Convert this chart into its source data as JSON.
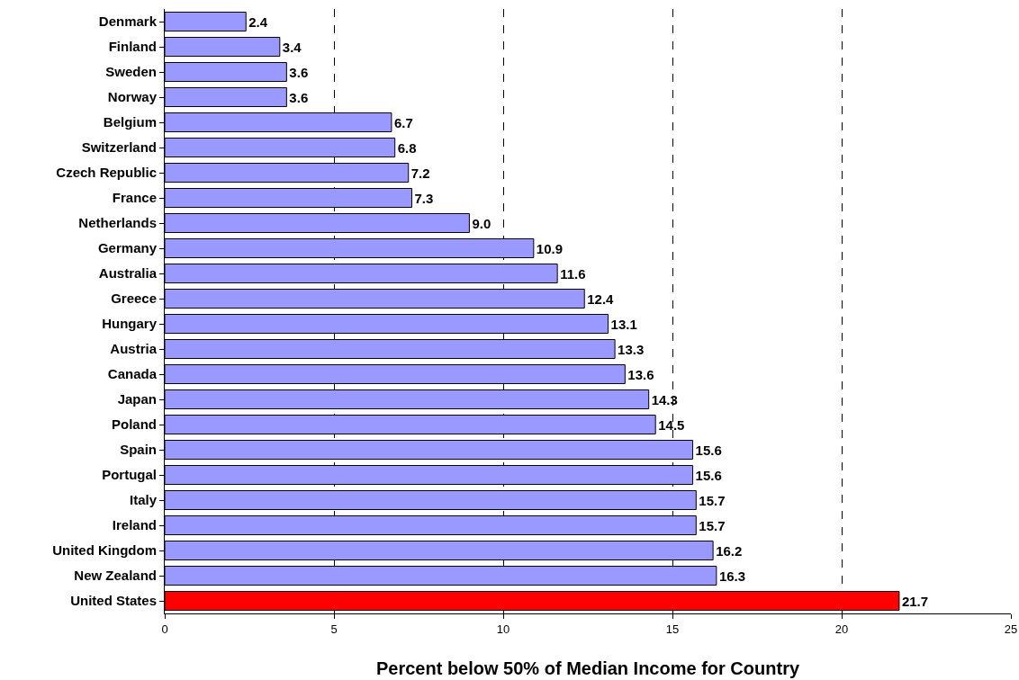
{
  "chart_data": {
    "type": "bar",
    "orientation": "horizontal",
    "xlabel": "Percent below 50% of Median Income for Country",
    "categories": [
      "Denmark",
      "Finland",
      "Sweden",
      "Norway",
      "Belgium",
      "Switzerland",
      "Czech Republic",
      "France",
      "Netherlands",
      "Germany",
      "Australia",
      "Greece",
      "Hungary",
      "Austria",
      "Canada",
      "Japan",
      "Poland",
      "Spain",
      "Portugal",
      "Italy",
      "Ireland",
      "United Kingdom",
      "New Zealand",
      "United States"
    ],
    "values": [
      2.4,
      3.4,
      3.6,
      3.6,
      6.7,
      6.8,
      7.2,
      7.3,
      9.0,
      10.9,
      11.6,
      12.4,
      13.1,
      13.3,
      13.6,
      14.3,
      14.5,
      15.6,
      15.6,
      15.7,
      15.7,
      16.2,
      16.3,
      21.7
    ],
    "value_labels": [
      "2.4",
      "3.4",
      "3.6",
      "3.6",
      "6.7",
      "6.8",
      "7.2",
      "7.3",
      "9.0",
      "10.9",
      "11.6",
      "12.4",
      "13.1",
      "13.3",
      "13.6",
      "14.3",
      "14.5",
      "15.6",
      "15.6",
      "15.7",
      "15.7",
      "16.2",
      "16.3",
      "21.7"
    ],
    "colors": [
      "#9999ff",
      "#9999ff",
      "#9999ff",
      "#9999ff",
      "#9999ff",
      "#9999ff",
      "#9999ff",
      "#9999ff",
      "#9999ff",
      "#9999ff",
      "#9999ff",
      "#9999ff",
      "#9999ff",
      "#9999ff",
      "#9999ff",
      "#9999ff",
      "#9999ff",
      "#9999ff",
      "#9999ff",
      "#9999ff",
      "#9999ff",
      "#9999ff",
      "#9999ff",
      "#ff0000"
    ],
    "xlim": [
      0,
      25
    ],
    "xticks": [
      0,
      5,
      10,
      15,
      20,
      25
    ],
    "grid": "x"
  }
}
